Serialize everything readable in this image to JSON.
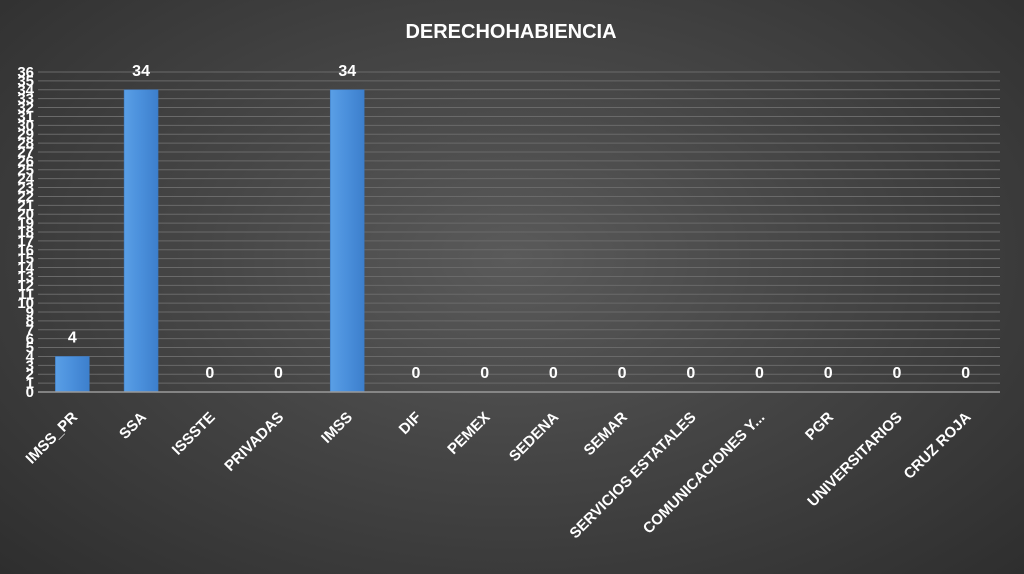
{
  "chart_data": {
    "type": "bar",
    "title": "DERECHOHABIENCIA",
    "xlabel": "",
    "ylabel": "",
    "categories": [
      "IMSS_PR",
      "SSA",
      "ISSSTE",
      "PRIVADAS",
      "IMSS",
      "DIF",
      "PEMEX",
      "SEDENA",
      "SEMAR",
      "SERVICIOS ESTATALES",
      "COMUNICACIONES Y...",
      "PGR",
      "UNIVERSITARIOS",
      "CRUZ ROJA"
    ],
    "values": [
      4,
      34,
      0,
      0,
      34,
      0,
      0,
      0,
      0,
      0,
      0,
      0,
      0,
      0
    ],
    "ylim": [
      0,
      36
    ],
    "yticks": [
      0,
      1,
      2,
      3,
      4,
      5,
      6,
      7,
      8,
      9,
      10,
      11,
      12,
      13,
      14,
      15,
      16,
      17,
      18,
      19,
      20,
      21,
      22,
      23,
      24,
      25,
      26,
      27,
      28,
      29,
      30,
      31,
      32,
      33,
      34,
      35,
      36
    ],
    "grid": true,
    "data_labels": true,
    "bar_color": "#4a90d9",
    "bar_highlight": "#6aaaf0"
  }
}
